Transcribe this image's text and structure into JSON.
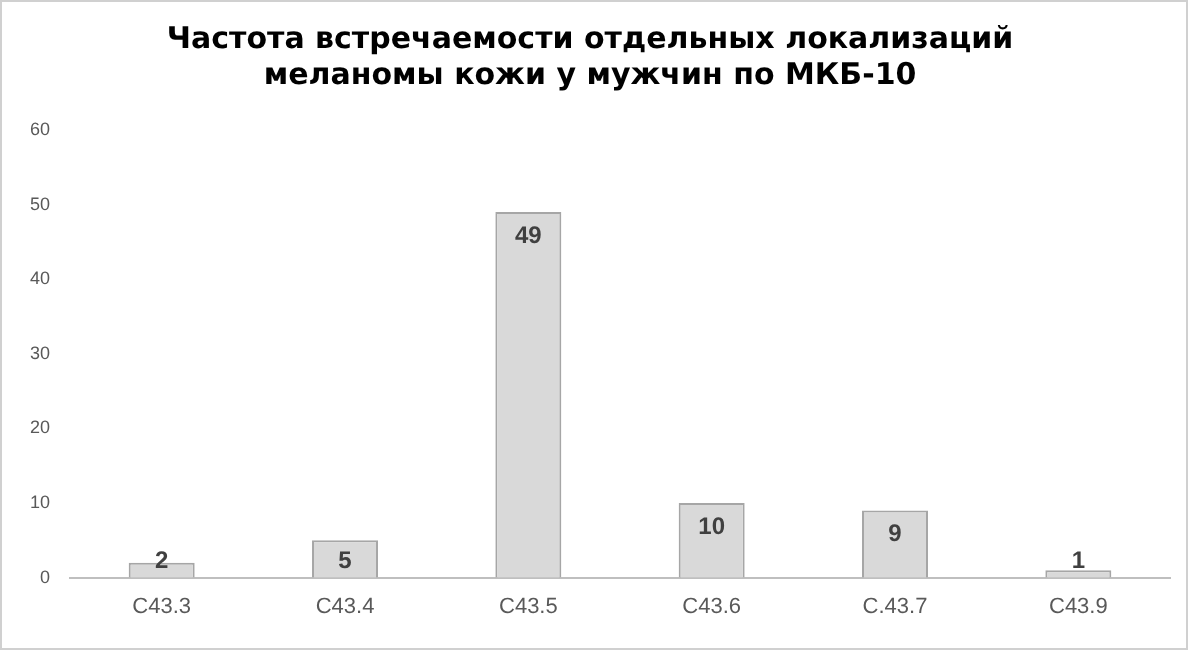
{
  "chart_data": {
    "type": "bar",
    "title": "Частота встречаемости отдельных локализаций меланомы кожи у мужчин по МКБ-10",
    "categories": [
      "C43.3",
      "C43.4",
      "C43.5",
      "C43.6",
      "C.43.7",
      "C43.9"
    ],
    "values": [
      2,
      5,
      49,
      10,
      9,
      1
    ],
    "color": "#d9d9d9",
    "ylim": [
      0,
      60
    ],
    "yticks": [
      0,
      10,
      20,
      30,
      40,
      50,
      60
    ],
    "grid": false,
    "legend": false,
    "data_labels": true
  }
}
